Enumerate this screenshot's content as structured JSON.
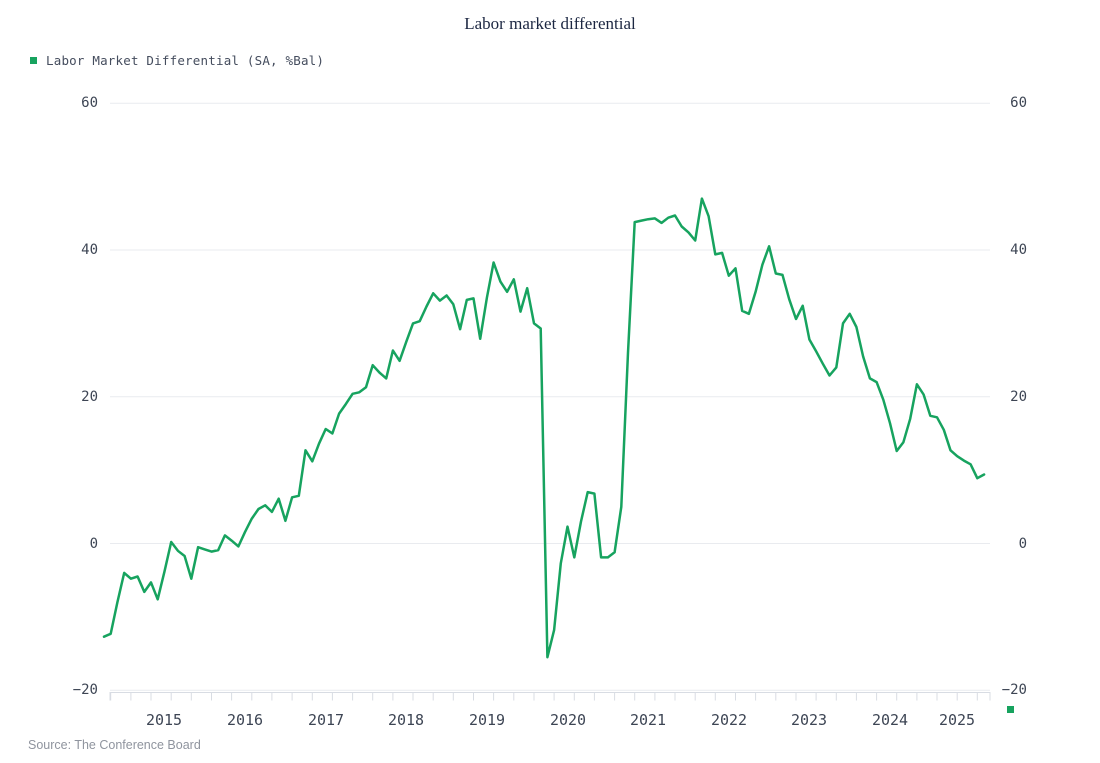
{
  "title": "Labor market differential",
  "legend": {
    "marker_color": "#17a35f",
    "label": "Labor Market Differential (SA, %Bal)"
  },
  "source": "Source: The Conference Board",
  "colors": {
    "line": "#17a35f",
    "grid": "#e9ebef",
    "axis": "#d8dce3",
    "title": "#1c2742",
    "tick_label": "#3d4554",
    "source_text": "#8f949e",
    "background": "#ffffff"
  },
  "chart_data": {
    "type": "line",
    "title": "Labor market differential",
    "grid": "horizontal-only",
    "legend_position": "top-left",
    "y_axis_sides": "both",
    "y_ticks": [
      60,
      40,
      20,
      0,
      -20
    ],
    "ylim": [
      -20,
      60
    ],
    "x_year_labels": [
      "2015",
      "2016",
      "2017",
      "2018",
      "2019",
      "2020",
      "2021",
      "2022",
      "2023",
      "2024",
      "2025"
    ],
    "series": [
      {
        "name": "Labor Market Differential (SA, %Bal)",
        "color": "#17a35f",
        "start": "2014-10",
        "frequency": "monthly",
        "values": [
          -12.7,
          -12.3,
          -8.0,
          -4.0,
          -4.8,
          -4.5,
          -6.6,
          -5.3,
          -7.6,
          -3.8,
          0.2,
          -1.0,
          -1.7,
          -4.8,
          -0.5,
          -0.8,
          -1.1,
          -0.9,
          1.1,
          0.4,
          -0.4,
          1.6,
          3.4,
          4.7,
          5.2,
          4.3,
          6.1,
          3.1,
          6.3,
          6.5,
          12.7,
          11.2,
          13.6,
          15.6,
          15.0,
          17.7,
          19.0,
          20.4,
          20.6,
          21.3,
          24.3,
          23.3,
          22.5,
          26.3,
          24.9,
          27.5,
          30.0,
          30.3,
          32.3,
          34.1,
          33.1,
          33.8,
          32.6,
          29.2,
          33.2,
          33.4,
          27.9,
          33.5,
          38.3,
          35.7,
          34.3,
          36.0,
          31.6,
          34.8,
          30.0,
          29.3,
          -15.5,
          -11.8,
          -2.7,
          2.3,
          -1.9,
          3.0,
          7.0,
          6.8,
          -1.9,
          -1.9,
          -1.2,
          5.0,
          26.0,
          43.8,
          44.0,
          44.2,
          44.3,
          43.7,
          44.4,
          44.7,
          43.2,
          42.4,
          41.3,
          47.0,
          44.6,
          39.4,
          39.6,
          36.5,
          37.5,
          31.7,
          31.3,
          34.3,
          38.0,
          40.5,
          36.8,
          36.6,
          33.3,
          30.6,
          32.4,
          27.8,
          26.2,
          24.5,
          22.9,
          24.0,
          30.0,
          31.3,
          29.5,
          25.5,
          22.5,
          22.0,
          19.6,
          16.4,
          12.6,
          13.8,
          17.0,
          21.7,
          20.3,
          17.4,
          17.2,
          15.5,
          12.7,
          11.9,
          11.3,
          10.8,
          8.9,
          9.4
        ]
      }
    ]
  }
}
